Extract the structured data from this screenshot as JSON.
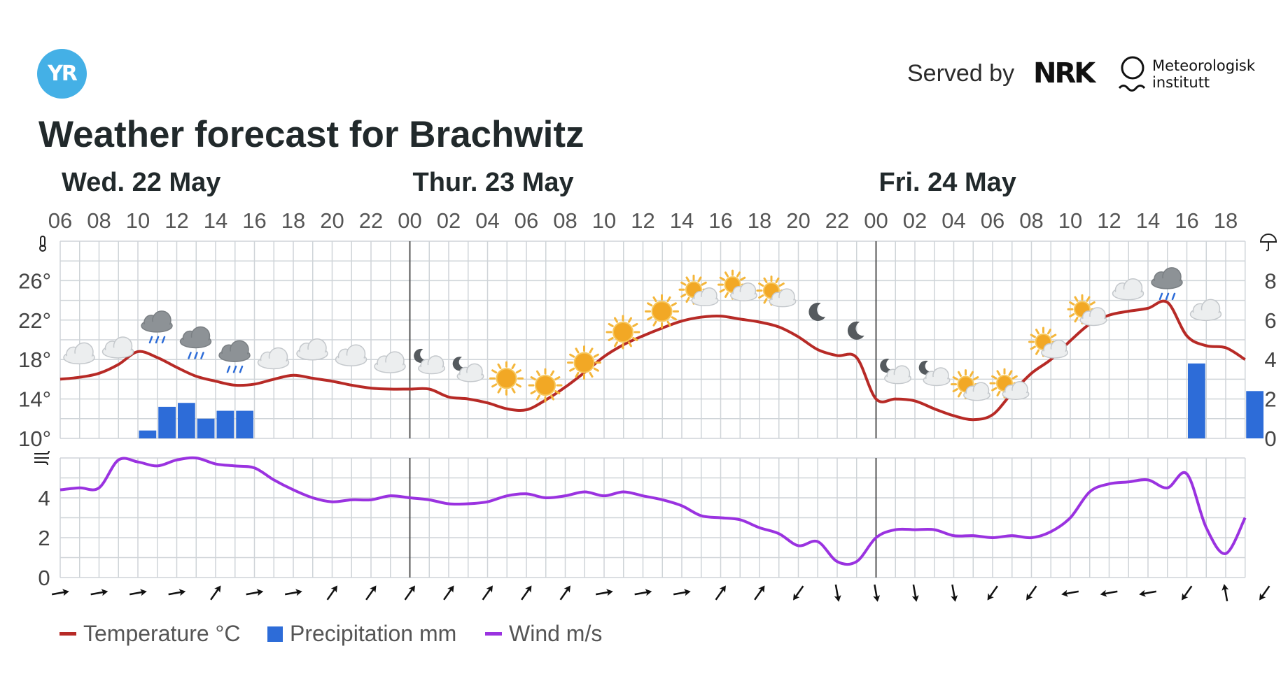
{
  "header": {
    "logo_text": "YR",
    "served_by": "Served by",
    "nrk": "NRK",
    "met_line1": "Meteorologisk",
    "met_line2": "institutt",
    "title": "Weather forecast for Brachwitz"
  },
  "days": [
    "Wed. 22 May",
    "Thur. 23 May",
    "Fri. 24 May"
  ],
  "legend": {
    "temperature": "Temperature °C",
    "precipitation": "Precipitation mm",
    "wind": "Wind m/s"
  },
  "colors": {
    "temperature": "#b72a26",
    "precipitation": "#2d6cd8",
    "wind": "#9a32e0",
    "grid": "#cfd4d8",
    "logo": "#44b0e6"
  },
  "chart_data": [
    {
      "type": "line",
      "title": "Temperature and precipitation",
      "hours": [
        "06",
        "07",
        "08",
        "09",
        "10",
        "11",
        "12",
        "13",
        "14",
        "15",
        "16",
        "17",
        "18",
        "19",
        "20",
        "21",
        "22",
        "23",
        "00",
        "01",
        "02",
        "03",
        "04",
        "05",
        "06",
        "07",
        "08",
        "09",
        "10",
        "11",
        "12",
        "13",
        "14",
        "15",
        "16",
        "17",
        "18",
        "19",
        "20",
        "21",
        "22",
        "23",
        "00",
        "01",
        "02",
        "03",
        "04",
        "05",
        "06",
        "07",
        "08",
        "09",
        "10",
        "11",
        "12",
        "13",
        "14",
        "15",
        "16",
        "17",
        "18",
        "19"
      ],
      "x_tick_labels": [
        "06",
        "08",
        "10",
        "12",
        "14",
        "16",
        "18",
        "20",
        "22",
        "00",
        "02",
        "04",
        "06",
        "08",
        "10",
        "12",
        "14",
        "16",
        "18",
        "20",
        "22",
        "00",
        "02",
        "04",
        "06",
        "08",
        "10",
        "12",
        "14",
        "16",
        "18"
      ],
      "y_left_ticks": [
        "10°",
        "14°",
        "18°",
        "22°",
        "26°"
      ],
      "y_right_ticks": [
        "0",
        "2",
        "4",
        "6",
        "8"
      ],
      "ylim_left": [
        10,
        30
      ],
      "ylim_right": [
        0,
        10
      ],
      "series": [
        {
          "name": "Temperature °C",
          "axis": "left",
          "values": [
            16.0,
            16.2,
            16.6,
            17.5,
            18.8,
            18.2,
            17.2,
            16.3,
            15.8,
            15.4,
            15.5,
            16.0,
            16.4,
            16.1,
            15.8,
            15.4,
            15.1,
            15.0,
            15.0,
            15.0,
            14.2,
            14.0,
            13.6,
            13.0,
            12.9,
            13.9,
            15.2,
            16.7,
            18.3,
            19.5,
            20.4,
            21.2,
            21.9,
            22.3,
            22.4,
            22.1,
            21.8,
            21.3,
            20.3,
            19.0,
            18.4,
            18.2,
            14.0,
            14.0,
            13.8,
            13.0,
            12.3,
            11.9,
            12.4,
            14.6,
            16.6,
            18.0,
            19.9,
            21.6,
            22.5,
            22.9,
            23.2,
            23.8,
            20.4,
            19.4,
            19.2,
            18.0
          ]
        },
        {
          "name": "Precipitation mm",
          "axis": "right",
          "type": "bar",
          "values": [
            0,
            0,
            0,
            0,
            0.4,
            1.6,
            1.8,
            1.0,
            1.4,
            1.4,
            0,
            0,
            0,
            0,
            0,
            0,
            0,
            0,
            0,
            0,
            0,
            0,
            0,
            0,
            0,
            0,
            0,
            0,
            0,
            0,
            0,
            0,
            0,
            0,
            0,
            0,
            0,
            0,
            0,
            0,
            0,
            0,
            0,
            0,
            0,
            0,
            0,
            0,
            0,
            0,
            0,
            0,
            0,
            0,
            0,
            0,
            0,
            0,
            3.8,
            0,
            0,
            2.4
          ]
        }
      ],
      "symbols": [
        "cloudy",
        "cloudy",
        "rain",
        "rain",
        "rain",
        "cloudy",
        "cloudy",
        "cloudy",
        "cloudy",
        "night-partly-cloudy",
        "night-partly-cloudy",
        "sun",
        "sun",
        "sun",
        "sun",
        "sun",
        "sun-partly-cloudy",
        "sun-partly-cloudy",
        "sun-partly-cloudy",
        "moon",
        "moon",
        "night-partly-cloudy",
        "night-partly-cloudy",
        "sun-partly-cloudy",
        "sun-partly-cloudy",
        "sun-partly-cloudy",
        "sun-partly-cloudy",
        "cloudy",
        "rain",
        "cloudy"
      ]
    },
    {
      "type": "line",
      "title": "Wind",
      "y_ticks": [
        "0",
        "2",
        "4"
      ],
      "ylim": [
        0,
        6
      ],
      "series": [
        {
          "name": "Wind m/s",
          "values": [
            4.4,
            4.5,
            4.5,
            5.9,
            5.8,
            5.6,
            5.9,
            6.0,
            5.7,
            5.6,
            5.5,
            4.9,
            4.4,
            4.0,
            3.8,
            3.9,
            3.9,
            4.1,
            4.0,
            3.9,
            3.7,
            3.7,
            3.8,
            4.1,
            4.2,
            4.0,
            4.1,
            4.3,
            4.1,
            4.3,
            4.1,
            3.9,
            3.6,
            3.1,
            3.0,
            2.9,
            2.5,
            2.2,
            1.6,
            1.8,
            0.8,
            0.8,
            2.0,
            2.4,
            2.4,
            2.4,
            2.1,
            2.1,
            2.0,
            2.1,
            2.0,
            2.3,
            3.0,
            4.3,
            4.7,
            4.8,
            4.9,
            4.5,
            5.2,
            2.5,
            1.2,
            3.0
          ]
        }
      ],
      "wind_directions": [
        "W",
        "W",
        "W",
        "W",
        "SW",
        "W",
        "W",
        "SW",
        "SW",
        "SW",
        "SW",
        "SW",
        "SW",
        "SW",
        "W",
        "W",
        "W",
        "SW",
        "SW",
        "NE",
        "N",
        "N",
        "N",
        "N",
        "NE",
        "NE",
        "E",
        "E",
        "E",
        "NE",
        "S",
        "NE"
      ]
    }
  ]
}
